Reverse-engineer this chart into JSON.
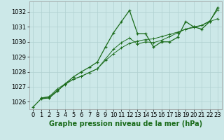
{
  "title": "Graphe pression niveau de la mer (hPa)",
  "bg_color": "#cce8e8",
  "grid_color": "#b0d0d0",
  "line_color": "#1a6b1a",
  "xlim": [
    -0.5,
    23.5
  ],
  "ylim": [
    1025.5,
    1032.7
  ],
  "yticks": [
    1026,
    1027,
    1028,
    1029,
    1030,
    1031,
    1032
  ],
  "xticks": [
    0,
    1,
    2,
    3,
    4,
    5,
    6,
    7,
    8,
    9,
    10,
    11,
    12,
    13,
    14,
    15,
    16,
    17,
    18,
    19,
    20,
    21,
    22,
    23
  ],
  "series_main": [
    [
      0.0,
      1025.65
    ],
    [
      1.0,
      1026.2
    ],
    [
      2.0,
      1026.25
    ],
    [
      3.0,
      1026.7
    ],
    [
      4.0,
      1027.2
    ],
    [
      5.0,
      1027.65
    ],
    [
      6.0,
      1028.0
    ],
    [
      7.0,
      1028.3
    ],
    [
      8.0,
      1028.65
    ],
    [
      9.0,
      1029.65
    ],
    [
      10.0,
      1030.6
    ],
    [
      11.0,
      1031.35
    ],
    [
      12.0,
      1032.1
    ],
    [
      13.0,
      1030.55
    ],
    [
      14.0,
      1030.55
    ],
    [
      15.0,
      1029.65
    ],
    [
      16.0,
      1030.0
    ],
    [
      17.0,
      1030.0
    ],
    [
      18.0,
      1030.3
    ],
    [
      19.0,
      1031.35
    ],
    [
      20.0,
      1031.0
    ],
    [
      21.0,
      1030.85
    ],
    [
      22.0,
      1031.35
    ],
    [
      23.0,
      1032.3
    ]
  ],
  "series2": [
    [
      1.0,
      1026.25
    ],
    [
      2.0,
      1026.3
    ],
    [
      3.0,
      1026.75
    ],
    [
      4.0,
      1027.15
    ],
    [
      5.0,
      1027.5
    ],
    [
      6.0,
      1027.7
    ],
    [
      7.0,
      1027.95
    ],
    [
      8.0,
      1028.2
    ],
    [
      9.0,
      1028.85
    ],
    [
      10.0,
      1029.5
    ],
    [
      11.0,
      1029.95
    ],
    [
      12.0,
      1030.25
    ],
    [
      13.0,
      1029.85
    ],
    [
      14.0,
      1030.0
    ],
    [
      15.0,
      1029.95
    ],
    [
      16.0,
      1030.1
    ],
    [
      17.0,
      1030.35
    ],
    [
      18.0,
      1030.6
    ],
    [
      19.0,
      1030.85
    ],
    [
      20.0,
      1031.0
    ],
    [
      21.0,
      1031.1
    ],
    [
      22.0,
      1031.4
    ],
    [
      23.0,
      1032.15
    ]
  ],
  "series3": [
    [
      1.0,
      1026.25
    ],
    [
      2.0,
      1026.35
    ],
    [
      3.0,
      1026.85
    ],
    [
      4.0,
      1027.2
    ],
    [
      5.0,
      1027.5
    ],
    [
      6.0,
      1027.7
    ],
    [
      7.0,
      1027.95
    ],
    [
      8.0,
      1028.2
    ],
    [
      9.0,
      1028.75
    ],
    [
      10.0,
      1029.2
    ],
    [
      11.0,
      1029.6
    ],
    [
      12.0,
      1029.9
    ],
    [
      13.0,
      1030.05
    ],
    [
      14.0,
      1030.15
    ],
    [
      15.0,
      1030.2
    ],
    [
      16.0,
      1030.35
    ],
    [
      17.0,
      1030.5
    ],
    [
      18.0,
      1030.65
    ],
    [
      19.0,
      1030.85
    ],
    [
      20.0,
      1030.95
    ],
    [
      21.0,
      1031.1
    ],
    [
      22.0,
      1031.35
    ],
    [
      23.0,
      1031.55
    ]
  ],
  "tick_fontsize": 6,
  "xlabel_fontsize": 7,
  "marker_size": 3.5,
  "line_width": 0.9
}
